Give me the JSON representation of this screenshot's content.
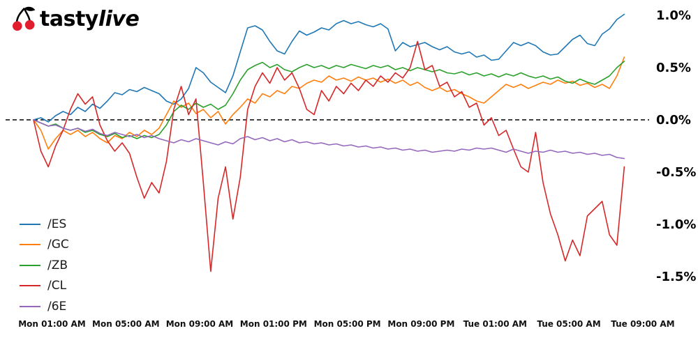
{
  "brand": {
    "name_regular": "tasty",
    "name_italic": "live",
    "cherry_color": "#e01e2d",
    "stem_color": "#000000"
  },
  "chart_data": {
    "type": "line",
    "title": "",
    "grid": false,
    "legend_position": "lower-left",
    "zero_line": {
      "value": 0,
      "style": "dashed",
      "color": "#000000"
    },
    "x_axis": {
      "tick_labels": [
        "Mon 01:00 AM",
        "Mon 05:00 AM",
        "Mon 09:00 AM",
        "Mon 01:00 PM",
        "Mon 05:00 PM",
        "Mon 09:00 PM",
        "Tue 01:00 AM",
        "Tue 05:00 AM",
        "Tue 09:00 AM"
      ],
      "tick_hours": [
        1,
        5,
        9,
        13,
        17,
        21,
        25,
        29,
        33
      ]
    },
    "y_axis": {
      "tick_labels": [
        "1.0%",
        "0.5%",
        "0.0%",
        "-0.5%",
        "-1.0%",
        "-1.5%"
      ],
      "tick_values": [
        1.0,
        0.5,
        0.0,
        -0.5,
        -1.0,
        -1.5
      ],
      "unit": "%",
      "ylim": [
        -1.6,
        1.1
      ]
    },
    "x_start": 0,
    "x_step": 0.4,
    "series": [
      {
        "name": "/ES",
        "color": "#1f77b4",
        "values": [
          0.0,
          0.02,
          -0.02,
          0.04,
          0.08,
          0.05,
          0.12,
          0.08,
          0.15,
          0.11,
          0.18,
          0.26,
          0.24,
          0.29,
          0.27,
          0.31,
          0.28,
          0.25,
          0.18,
          0.15,
          0.2,
          0.3,
          0.5,
          0.45,
          0.36,
          0.31,
          0.26,
          0.42,
          0.65,
          0.88,
          0.9,
          0.86,
          0.75,
          0.66,
          0.63,
          0.75,
          0.85,
          0.81,
          0.84,
          0.88,
          0.86,
          0.92,
          0.95,
          0.92,
          0.94,
          0.91,
          0.89,
          0.92,
          0.87,
          0.66,
          0.74,
          0.7,
          0.72,
          0.74,
          0.7,
          0.67,
          0.7,
          0.65,
          0.63,
          0.65,
          0.6,
          0.62,
          0.57,
          0.58,
          0.66,
          0.74,
          0.71,
          0.74,
          0.71,
          0.65,
          0.62,
          0.63,
          0.7,
          0.77,
          0.81,
          0.73,
          0.71,
          0.82,
          0.87,
          0.96,
          1.01
        ]
      },
      {
        "name": "/GC",
        "color": "#ff7f0e",
        "values": [
          0.0,
          -0.1,
          -0.28,
          -0.18,
          -0.1,
          -0.14,
          -0.1,
          -0.16,
          -0.12,
          -0.18,
          -0.22,
          -0.15,
          -0.18,
          -0.12,
          -0.16,
          -0.1,
          -0.14,
          -0.08,
          0.05,
          0.18,
          0.12,
          0.16,
          0.06,
          0.1,
          0.02,
          0.08,
          -0.04,
          0.05,
          0.12,
          0.2,
          0.16,
          0.25,
          0.22,
          0.28,
          0.25,
          0.32,
          0.3,
          0.35,
          0.38,
          0.36,
          0.42,
          0.38,
          0.4,
          0.37,
          0.41,
          0.38,
          0.4,
          0.36,
          0.39,
          0.35,
          0.38,
          0.33,
          0.36,
          0.31,
          0.28,
          0.31,
          0.27,
          0.29,
          0.25,
          0.22,
          0.18,
          0.16,
          0.22,
          0.28,
          0.34,
          0.31,
          0.34,
          0.3,
          0.33,
          0.36,
          0.34,
          0.38,
          0.35,
          0.37,
          0.33,
          0.35,
          0.31,
          0.34,
          0.3,
          0.42,
          0.6
        ]
      },
      {
        "name": "/ZB",
        "color": "#2ca02c",
        "values": [
          0.0,
          -0.03,
          -0.06,
          -0.04,
          -0.08,
          -0.1,
          -0.08,
          -0.12,
          -0.1,
          -0.14,
          -0.16,
          -0.13,
          -0.17,
          -0.15,
          -0.18,
          -0.15,
          -0.17,
          -0.14,
          -0.05,
          0.08,
          0.14,
          0.1,
          0.16,
          0.12,
          0.15,
          0.1,
          0.14,
          0.25,
          0.38,
          0.48,
          0.52,
          0.55,
          0.5,
          0.53,
          0.48,
          0.46,
          0.5,
          0.53,
          0.5,
          0.52,
          0.49,
          0.52,
          0.5,
          0.53,
          0.51,
          0.49,
          0.52,
          0.5,
          0.52,
          0.48,
          0.5,
          0.47,
          0.5,
          0.48,
          0.46,
          0.48,
          0.45,
          0.44,
          0.46,
          0.43,
          0.45,
          0.42,
          0.44,
          0.41,
          0.44,
          0.42,
          0.45,
          0.42,
          0.4,
          0.42,
          0.39,
          0.41,
          0.37,
          0.35,
          0.39,
          0.36,
          0.34,
          0.38,
          0.42,
          0.5,
          0.56
        ]
      },
      {
        "name": "/CL",
        "color": "#d62728",
        "values": [
          0.0,
          -0.3,
          -0.45,
          -0.25,
          -0.1,
          0.1,
          0.25,
          0.15,
          0.22,
          -0.05,
          -0.2,
          -0.3,
          -0.22,
          -0.32,
          -0.55,
          -0.75,
          -0.6,
          -0.7,
          -0.4,
          0.1,
          0.32,
          0.05,
          0.2,
          -0.6,
          -1.45,
          -0.75,
          -0.45,
          -0.95,
          -0.55,
          0.1,
          0.32,
          0.45,
          0.35,
          0.5,
          0.38,
          0.45,
          0.3,
          0.1,
          0.05,
          0.28,
          0.18,
          0.32,
          0.25,
          0.35,
          0.28,
          0.38,
          0.32,
          0.42,
          0.36,
          0.45,
          0.4,
          0.5,
          0.75,
          0.48,
          0.52,
          0.32,
          0.36,
          0.22,
          0.27,
          0.12,
          0.16,
          -0.05,
          0.02,
          -0.15,
          -0.1,
          -0.28,
          -0.45,
          -0.5,
          -0.12,
          -0.6,
          -0.9,
          -1.1,
          -1.35,
          -1.15,
          -1.3,
          -0.92,
          -0.85,
          -0.78,
          -1.1,
          -1.2,
          -0.45
        ]
      },
      {
        "name": "/6E",
        "color": "#9467bd",
        "values": [
          0.0,
          -0.03,
          -0.06,
          -0.05,
          -0.08,
          -0.1,
          -0.08,
          -0.11,
          -0.09,
          -0.13,
          -0.15,
          -0.12,
          -0.14,
          -0.16,
          -0.14,
          -0.17,
          -0.15,
          -0.18,
          -0.2,
          -0.22,
          -0.19,
          -0.21,
          -0.18,
          -0.2,
          -0.22,
          -0.24,
          -0.21,
          -0.23,
          -0.18,
          -0.16,
          -0.19,
          -0.17,
          -0.2,
          -0.18,
          -0.21,
          -0.19,
          -0.22,
          -0.21,
          -0.23,
          -0.22,
          -0.24,
          -0.23,
          -0.25,
          -0.24,
          -0.26,
          -0.25,
          -0.27,
          -0.26,
          -0.28,
          -0.27,
          -0.29,
          -0.28,
          -0.3,
          -0.29,
          -0.31,
          -0.3,
          -0.29,
          -0.3,
          -0.28,
          -0.29,
          -0.27,
          -0.28,
          -0.27,
          -0.29,
          -0.31,
          -0.28,
          -0.3,
          -0.32,
          -0.3,
          -0.31,
          -0.29,
          -0.31,
          -0.3,
          -0.32,
          -0.31,
          -0.33,
          -0.32,
          -0.34,
          -0.33,
          -0.36,
          -0.37
        ]
      }
    ]
  }
}
